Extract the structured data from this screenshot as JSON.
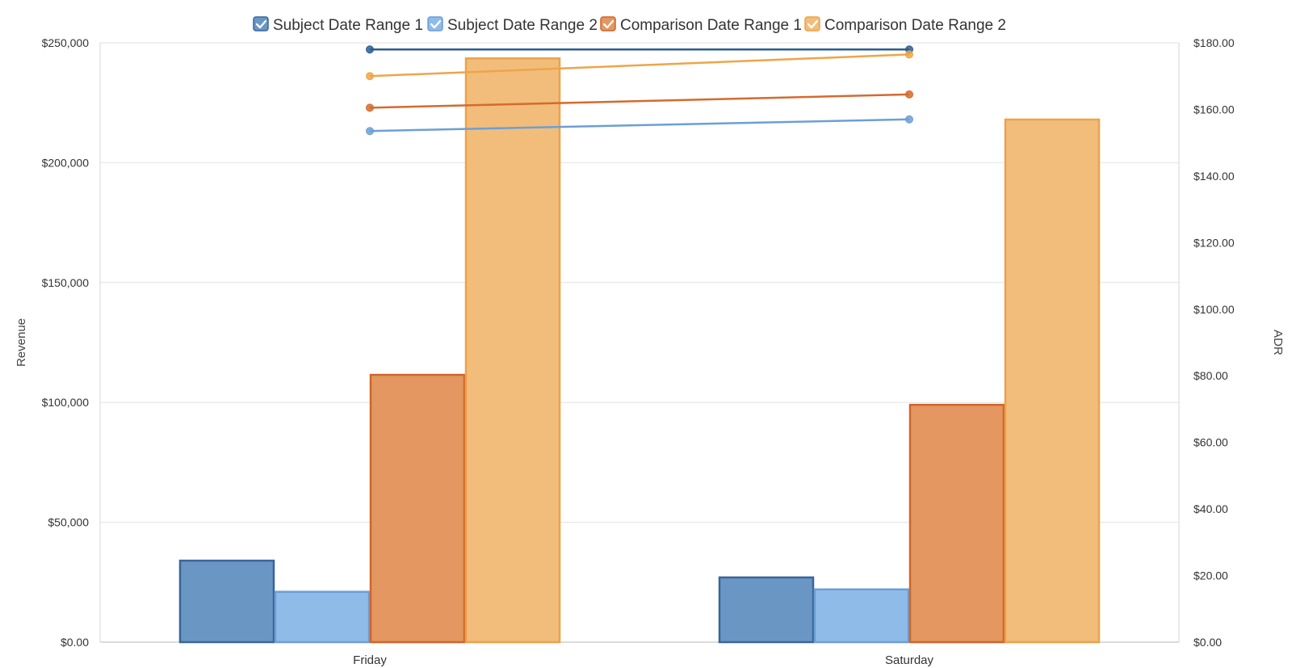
{
  "chart_data": {
    "type": "bar",
    "categories": [
      "Friday",
      "Saturday"
    ],
    "legend_position": "top-center",
    "grid": true,
    "ylabel": "Revenue",
    "y2label": "ADR",
    "ylim": [
      0,
      250000
    ],
    "y2lim": [
      0,
      180
    ],
    "y_ticks": [
      "$0.00",
      "$50,000",
      "$100,000",
      "$150,000",
      "$200,000",
      "$250,000"
    ],
    "y2_ticks": [
      "$0.00",
      "$20.00",
      "$40.00",
      "$60.00",
      "$80.00",
      "$100.00",
      "$120.00",
      "$140.00",
      "$160.00",
      "$180.00"
    ],
    "series": [
      {
        "name": "Subject Date Range 1",
        "color": "#6a96c4",
        "stroke": "#3a6599",
        "line_color": "#2b5d92",
        "values": [
          34000,
          27000
        ],
        "adr": [
          178,
          178
        ]
      },
      {
        "name": "Subject Date Range 2",
        "color": "#8fbbe8",
        "stroke": "#6b9ed6",
        "line_color": "#6c9fd6",
        "values": [
          21000,
          22000
        ],
        "adr": [
          153.5,
          157
        ]
      },
      {
        "name": "Comparison Date Range 1",
        "color": "#e49760",
        "stroke": "#d0652a",
        "line_color": "#d56a2e",
        "values": [
          111500,
          99000
        ],
        "adr": [
          160.5,
          164.5
        ]
      },
      {
        "name": "Comparison Date Range 2",
        "color": "#f2bd7a",
        "stroke": "#eca24a",
        "line_color": "#eea548",
        "values": [
          243500,
          218000
        ],
        "adr": [
          170,
          176.5
        ]
      }
    ]
  }
}
